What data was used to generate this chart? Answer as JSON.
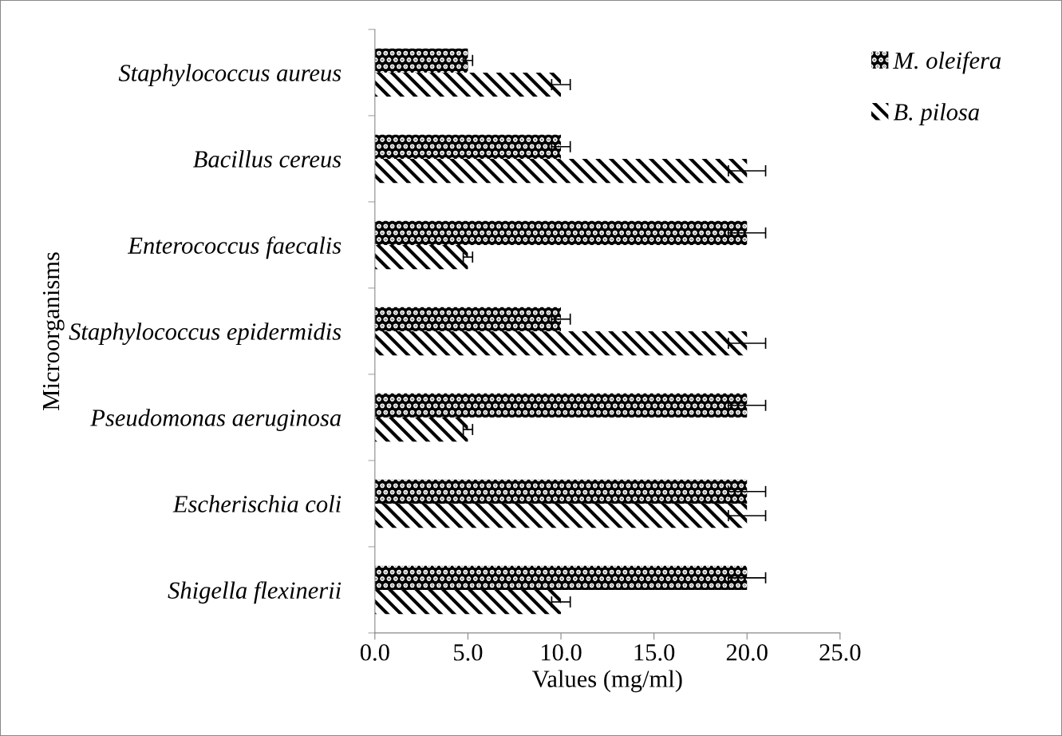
{
  "chart_data": {
    "type": "bar",
    "orientation": "horizontal",
    "xlabel": "Values (mg/ml)",
    "ylabel": "Microorganisms",
    "categories": [
      "Staphylococcus aureus",
      "Bacillus cereus",
      "Enterococcus faecalis",
      "Staphylococcus epidermidis",
      "Pseudomonas aeruginosa",
      "Escherischia coli",
      "Shigella flexinerii"
    ],
    "series": [
      {
        "name": "M. oleifera",
        "color": "#000000",
        "values": [
          5,
          10,
          20,
          10,
          20,
          20,
          20
        ],
        "errors": [
          0.25,
          0.5,
          1,
          0.5,
          1,
          1,
          1
        ]
      },
      {
        "name": "B. pilosa",
        "color": "#000000",
        "values": [
          10,
          20,
          5,
          20,
          5,
          20,
          10
        ],
        "errors": [
          0.5,
          1,
          0.25,
          1,
          0.25,
          1,
          0.5
        ]
      }
    ],
    "xlim": [
      0,
      25
    ],
    "xticks": [
      {
        "value": 0,
        "label": "0.0"
      },
      {
        "value": 5,
        "label": "5.0"
      },
      {
        "value": 10,
        "label": "10.0"
      },
      {
        "value": 15,
        "label": "15.0"
      },
      {
        "value": 20,
        "label": "20.0"
      },
      {
        "value": 25,
        "label": "25.0"
      }
    ],
    "grid": false,
    "legend": "top right"
  }
}
